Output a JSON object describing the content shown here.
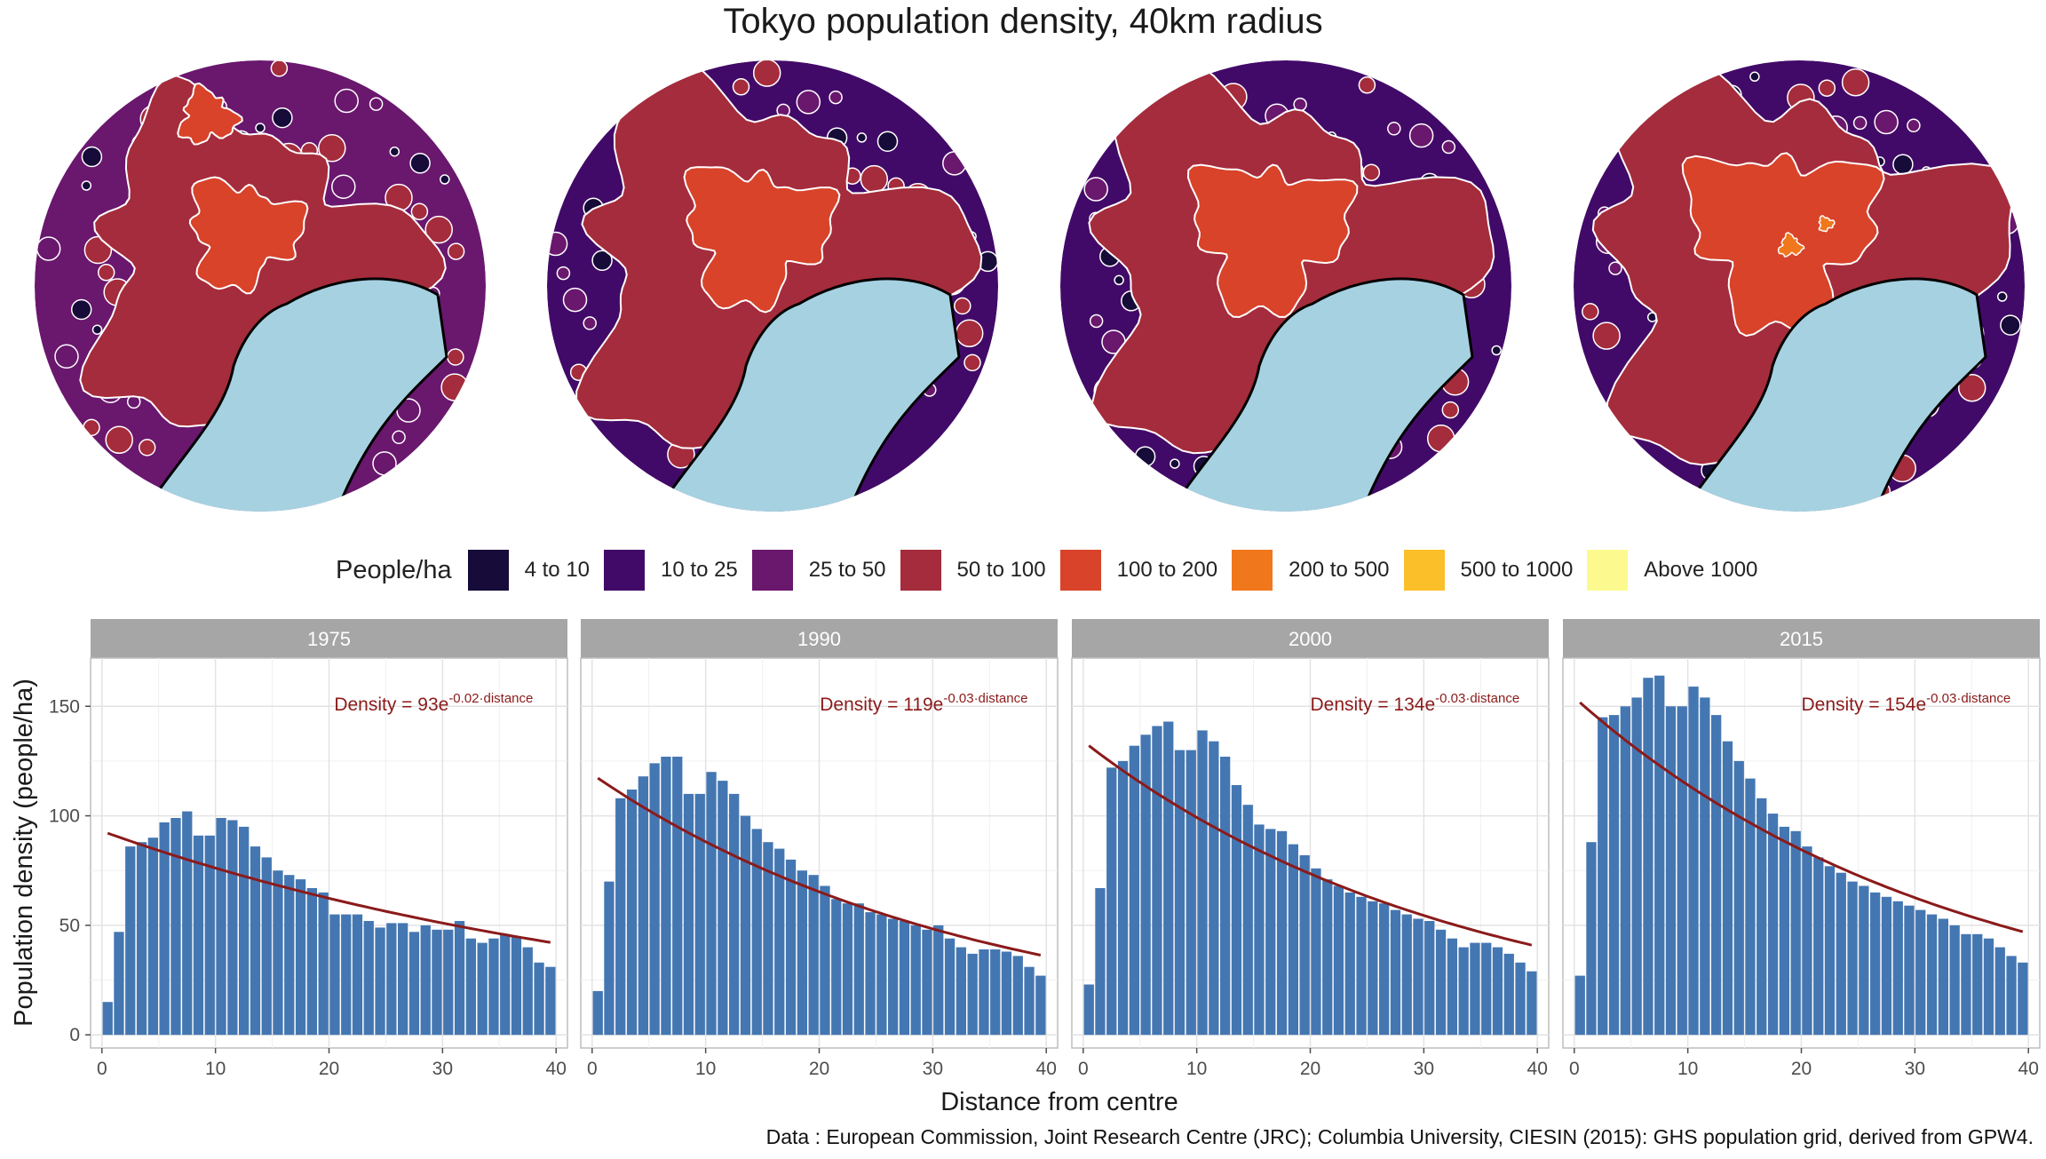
{
  "title": "Tokyo population density, 40km radius",
  "legend": {
    "title": "People/ha",
    "items": [
      {
        "label": "4 to 10",
        "color": "#160b39"
      },
      {
        "label": "10 to 25",
        "color": "#420a68"
      },
      {
        "label": "25 to 50",
        "color": "#6a176e"
      },
      {
        "label": "50 to 100",
        "color": "#a52c3c"
      },
      {
        "label": "100 to 200",
        "color": "#d8432a"
      },
      {
        "label": "200 to 500",
        "color": "#f1771d"
      },
      {
        "label": "500 to 1000",
        "color": "#fbbf2a"
      },
      {
        "label": "Above 1000",
        "color": "#fcfa8f"
      }
    ]
  },
  "caption": "Data : European Commission, Joint Research Centre (JRC); Columbia University, CIESIN (2015): GHS population grid, derived from GPW4.",
  "chart_data": {
    "type": "bar",
    "xlabel": "Distance from centre",
    "ylabel": "Population density (people/ha)",
    "xlim": [
      -1,
      41
    ],
    "ylim": [
      -6,
      172
    ],
    "xticks": [
      0,
      10,
      20,
      30,
      40
    ],
    "yticks": [
      0,
      50,
      100,
      150
    ],
    "grid": true,
    "bar_color": "#4477b2",
    "fit_color": "#8b1a1a",
    "water_color": "#a6d1e1",
    "x": [
      0.5,
      1.5,
      2.5,
      3.5,
      4.5,
      5.5,
      6.5,
      7.5,
      8.5,
      9.5,
      10.5,
      11.5,
      12.5,
      13.5,
      14.5,
      15.5,
      16.5,
      17.5,
      18.5,
      19.5,
      20.5,
      21.5,
      22.5,
      23.5,
      24.5,
      25.5,
      26.5,
      27.5,
      28.5,
      29.5,
      30.5,
      31.5,
      32.5,
      33.5,
      34.5,
      35.5,
      36.5,
      37.5,
      38.5,
      39.5
    ],
    "panels": [
      {
        "name": "1975",
        "annotation": {
          "prefix": "Density = 93e",
          "exponent": "-0.02·distance"
        },
        "fit": {
          "a": 93,
          "b": -0.02
        },
        "values": [
          15,
          47,
          86,
          88,
          90,
          97,
          99,
          102,
          91,
          91,
          99,
          98,
          95,
          86,
          81,
          75,
          73,
          71,
          67,
          65,
          55,
          55,
          55,
          52,
          49,
          51,
          51,
          47,
          50,
          48,
          48,
          52,
          44,
          42,
          44,
          46,
          45,
          40,
          33,
          31
        ]
      },
      {
        "name": "1990",
        "annotation": {
          "prefix": "Density = 119e",
          "exponent": "-0.03·distance"
        },
        "fit": {
          "a": 119,
          "b": -0.03
        },
        "values": [
          20,
          70,
          108,
          112,
          118,
          124,
          127,
          127,
          110,
          110,
          120,
          116,
          110,
          100,
          94,
          88,
          85,
          80,
          75,
          73,
          68,
          62,
          60,
          60,
          56,
          55,
          53,
          52,
          50,
          48,
          50,
          44,
          40,
          37,
          39,
          39,
          38,
          36,
          31,
          27
        ]
      },
      {
        "name": "2000",
        "annotation": {
          "prefix": "Density = 134e",
          "exponent": "-0.03·distance"
        },
        "fit": {
          "a": 134,
          "b": -0.03
        },
        "values": [
          23,
          67,
          122,
          125,
          132,
          137,
          141,
          143,
          130,
          130,
          139,
          134,
          127,
          114,
          105,
          96,
          94,
          93,
          87,
          82,
          76,
          71,
          68,
          65,
          63,
          61,
          60,
          57,
          55,
          53,
          52,
          48,
          44,
          40,
          42,
          42,
          40,
          37,
          33,
          29
        ]
      },
      {
        "name": "2015",
        "annotation": {
          "prefix": "Density = 154e",
          "exponent": "-0.03·distance"
        },
        "fit": {
          "a": 154,
          "b": -0.03
        },
        "values": [
          27,
          88,
          145,
          146,
          150,
          154,
          163,
          164,
          150,
          150,
          159,
          154,
          146,
          134,
          125,
          117,
          108,
          101,
          95,
          93,
          86,
          81,
          77,
          74,
          70,
          68,
          65,
          63,
          61,
          59,
          57,
          55,
          53,
          50,
          46,
          46,
          44,
          40,
          36,
          33
        ]
      }
    ]
  }
}
